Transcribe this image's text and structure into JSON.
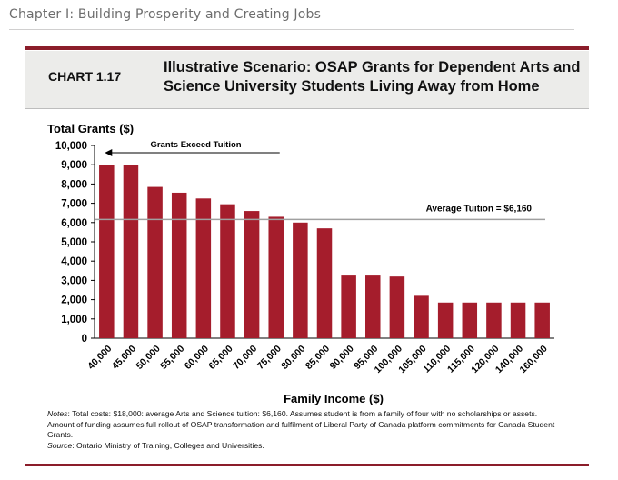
{
  "page": {
    "chapter_header": "Chapter I: Building Prosperity and Creating Jobs"
  },
  "chart_header": {
    "number": "CHART 1.17",
    "title": "Illustrative Scenario: OSAP Grants for Dependent Arts and Science University Students Living Away from Home"
  },
  "colors": {
    "bar": "#a51d2c",
    "accent_rule": "#8b1d2a",
    "reference_line": "#a0a0a0"
  },
  "notes": {
    "notes_label": "Notes",
    "notes_text": ": Total costs: $18,000: average Arts and Science tuition: $6,160. Assumes student is from a family of four with no scholarships or assets. Amount of funding assumes full rollout of OSAP transformation and fulfilment of Liberal Party of Canada platform commitments for Canada Student Grants.",
    "source_label": "Source",
    "source_text": ": Ontario Ministry of Training, Colleges and Universities."
  },
  "chart_data": {
    "type": "bar",
    "title": "",
    "ylabel": "Total Grants ($)",
    "xlabel": "Family Income ($)",
    "ylim": [
      0,
      10000
    ],
    "yticks": [
      0,
      1000,
      2000,
      3000,
      4000,
      5000,
      6000,
      7000,
      8000,
      9000,
      10000
    ],
    "ytick_labels": [
      "0",
      "1,000",
      "2,000",
      "3,000",
      "4,000",
      "5,000",
      "6,000",
      "7,000",
      "8,000",
      "9,000",
      "10,000"
    ],
    "categories": [
      "40,000",
      "45,000",
      "50,000",
      "55,000",
      "60,000",
      "65,000",
      "70,000",
      "75,000",
      "80,000",
      "85,000",
      "90,000",
      "95,000",
      "100,000",
      "105,000",
      "110,000",
      "115,000",
      "120,000",
      "140,000",
      "160,000"
    ],
    "values": [
      9000,
      9000,
      7850,
      7550,
      7250,
      6950,
      6600,
      6300,
      6000,
      5700,
      3250,
      3250,
      3200,
      2200,
      1850,
      1850,
      1850,
      1850,
      1850
    ],
    "grid": false,
    "reference_line": {
      "value": 6160,
      "label": "Average Tuition = $6,160"
    },
    "annotations": [
      {
        "text": "Grants Exceed Tuition",
        "arrow": "left",
        "from_category": "75,000",
        "to_category": "40,000"
      }
    ]
  }
}
